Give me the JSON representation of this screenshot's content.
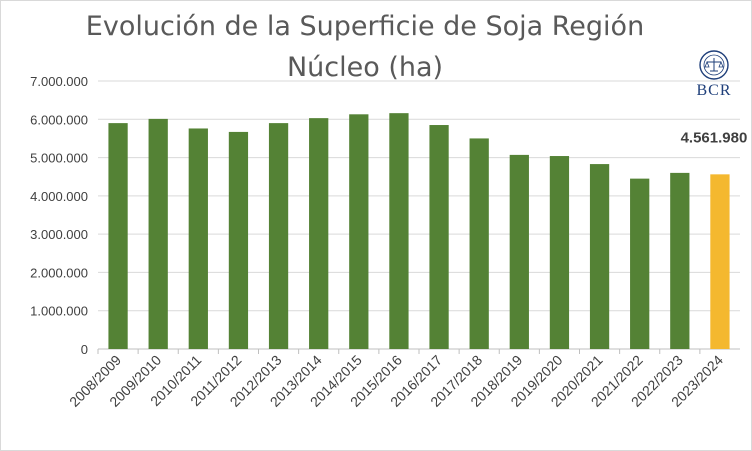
{
  "chart_data": {
    "type": "bar",
    "title_line1": "Evolución de la Superficie de Soja Región",
    "title_line2": "Núcleo (ha)",
    "xlabel": "",
    "ylabel": "",
    "ylim": [
      0,
      7000000
    ],
    "ytick_labels": [
      "0",
      "1.000.000",
      "2.000.000",
      "3.000.000",
      "4.000.000",
      "5.000.000",
      "6.000.000",
      "7.000.000"
    ],
    "ytick_values": [
      0,
      1000000,
      2000000,
      3000000,
      4000000,
      5000000,
      6000000,
      7000000
    ],
    "grid": true,
    "categories": [
      "2008/2009",
      "2009/2010",
      "2010/2011",
      "2011/2012",
      "2012/2013",
      "2013/2014",
      "2014/2015",
      "2015/2016",
      "2016/2017",
      "2017/2018",
      "2018/2019",
      "2019/2020",
      "2020/2021",
      "2021/2022",
      "2022/2023",
      "2023/2024"
    ],
    "values": [
      5900000,
      6010000,
      5760000,
      5670000,
      5900000,
      6030000,
      6130000,
      6160000,
      5850000,
      5500000,
      5070000,
      5040000,
      4830000,
      4450000,
      4600000,
      4561980
    ],
    "data_label": "4.561.980",
    "colors": {
      "bar": "#548235",
      "highlight": "#f4b82f",
      "grid": "#d9d9d9",
      "axis": "#bfbfbf"
    },
    "highlight_index": 15
  },
  "logo": {
    "text": "BCR",
    "icon": "bcr-seal-icon"
  }
}
